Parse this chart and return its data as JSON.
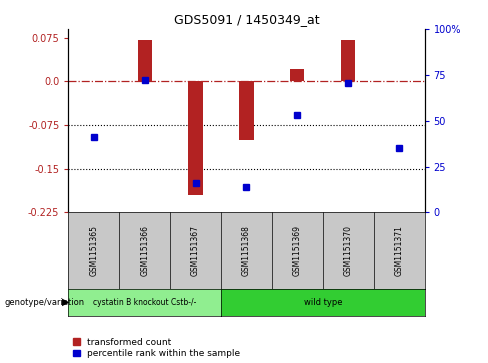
{
  "title": "GDS5091 / 1450349_at",
  "samples": [
    "GSM1151365",
    "GSM1151366",
    "GSM1151367",
    "GSM1151368",
    "GSM1151369",
    "GSM1151370",
    "GSM1151371"
  ],
  "bar_values": [
    0.0,
    0.072,
    -0.195,
    -0.1,
    0.022,
    0.072,
    0.0
  ],
  "dot_values": [
    -0.095,
    0.002,
    -0.175,
    -0.182,
    -0.058,
    -0.002,
    -0.115
  ],
  "ylim_left": [
    -0.225,
    0.09
  ],
  "ylim_right": [
    0,
    100
  ],
  "yticks_left": [
    0.075,
    0.0,
    -0.075,
    -0.15,
    -0.225
  ],
  "yticks_right": [
    100,
    75,
    50,
    25,
    0
  ],
  "hlines": [
    -0.075,
    -0.15
  ],
  "zero_line": 0.0,
  "bar_color": "#B22222",
  "dot_color": "#0000CD",
  "groups": [
    {
      "label": "cystatin B knockout Cstb-/-",
      "n_samples": 3,
      "color": "#90EE90"
    },
    {
      "label": "wild type",
      "n_samples": 4,
      "color": "#32CD32"
    }
  ],
  "group_row_label": "genotype/variation",
  "legend_bar_label": "transformed count",
  "legend_dot_label": "percentile rank within the sample",
  "background_color": "#ffffff",
  "plot_bg": "#ffffff",
  "tick_area_bg": "#c8c8c8"
}
